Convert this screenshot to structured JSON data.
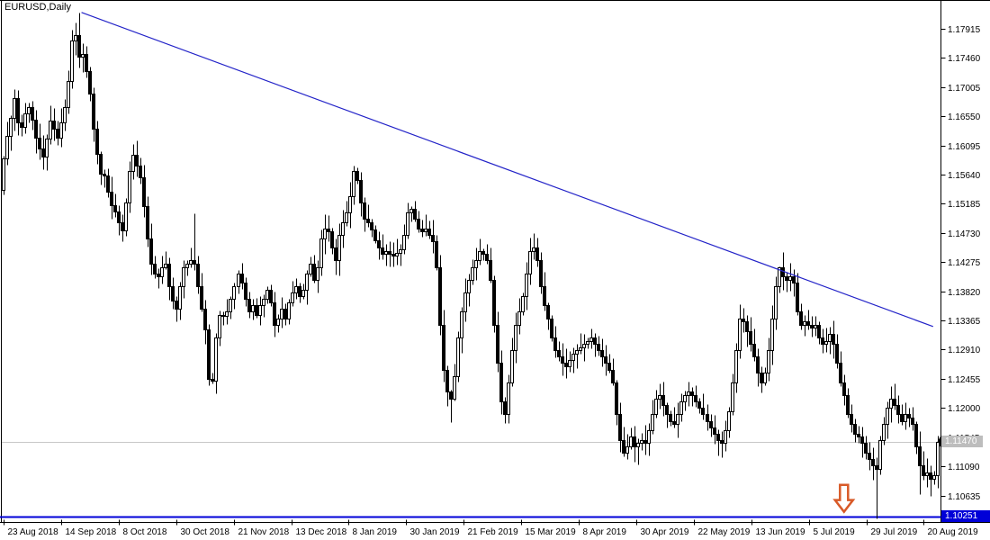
{
  "window": {
    "title_label": "EURUSD,Daily"
  },
  "chart_data": {
    "type": "candlestick",
    "symbol": "EURUSD",
    "timeframe": "Daily",
    "title": "EURUSD,Daily",
    "bars_total": 260,
    "ylim": [
      1.1019,
      1.1836
    ],
    "grid": "off",
    "legend": "none",
    "y_ticks": [
      "1.17915",
      "1.17460",
      "1.17005",
      "1.16550",
      "1.16095",
      "1.15640",
      "1.15185",
      "1.14730",
      "1.14275",
      "1.13820",
      "1.13365",
      "1.12910",
      "1.12455",
      "1.12000",
      "1.11545",
      "1.11090",
      "1.10635"
    ],
    "x_labels": [
      "23 Aug 2018",
      "14 Sep 2018",
      "8 Oct 2018",
      "30 Oct 2018",
      "21 Nov 2018",
      "13 Dec 2018",
      "8 Jan 2019",
      "30 Jan 2019",
      "21 Feb 2019",
      "15 Mar 2019",
      "8 Apr 2019",
      "30 Apr 2019",
      "22 May 2019",
      "13 Jun 2019",
      "5 Jul 2019",
      "29 Jul 2019",
      "20 Aug 2019"
    ],
    "first_open": 1.154,
    "closes": [
      1.159,
      1.1625,
      1.1652,
      1.1684,
      1.1645,
      1.1638,
      1.166,
      1.1669,
      1.165,
      1.1621,
      1.1605,
      1.1592,
      1.162,
      1.1648,
      1.1635,
      1.1621,
      1.1645,
      1.1669,
      1.171,
      1.1773,
      1.1782,
      1.1748,
      1.1752,
      1.1726,
      1.169,
      1.1635,
      1.1596,
      1.1565,
      1.1562,
      1.1538,
      1.1516,
      1.1507,
      1.149,
      1.1477,
      1.152,
      1.157,
      1.1595,
      1.1578,
      1.156,
      1.1515,
      1.1465,
      1.1425,
      1.141,
      1.1405,
      1.142,
      1.1425,
      1.139,
      1.1368,
      1.1355,
      1.139,
      1.142,
      1.1425,
      1.143,
      1.1425,
      1.139,
      1.1355,
      1.1322,
      1.1245,
      1.1242,
      1.131,
      1.1345,
      1.1343,
      1.135,
      1.137,
      1.139,
      1.141,
      1.1395,
      1.137,
      1.135,
      1.136,
      1.1345,
      1.136,
      1.137,
      1.1385,
      1.1365,
      1.133,
      1.134,
      1.1355,
      1.134,
      1.1365,
      1.138,
      1.139,
      1.1375,
      1.1385,
      1.141,
      1.1425,
      1.14,
      1.142,
      1.1465,
      1.148,
      1.1475,
      1.145,
      1.143,
      1.147,
      1.149,
      1.1505,
      1.153,
      1.157,
      1.1555,
      1.152,
      1.1495,
      1.149,
      1.1478,
      1.1462,
      1.145,
      1.144,
      1.1445,
      1.144,
      1.1438,
      1.1442,
      1.1448,
      1.147,
      1.1505,
      1.151,
      1.1495,
      1.148,
      1.1475,
      1.148,
      1.147,
      1.146,
      1.142,
      1.133,
      1.126,
      1.1225,
      1.1215,
      1.125,
      1.131,
      1.135,
      1.138,
      1.14,
      1.142,
      1.143,
      1.1445,
      1.144,
      1.143,
      1.14,
      1.133,
      1.127,
      1.121,
      1.119,
      1.124,
      1.129,
      1.133,
      1.135,
      1.1375,
      1.141,
      1.1445,
      1.145,
      1.143,
      1.139,
      1.136,
      1.134,
      1.131,
      1.129,
      1.128,
      1.127,
      1.1265,
      1.1275,
      1.1285,
      1.129,
      1.1295,
      1.13,
      1.1305,
      1.131,
      1.13,
      1.129,
      1.128,
      1.127,
      1.126,
      1.124,
      1.119,
      1.115,
      1.113,
      1.114,
      1.1155,
      1.114,
      1.1145,
      1.115,
      1.1145,
      1.1165,
      1.119,
      1.1215,
      1.122,
      1.1205,
      1.119,
      1.118,
      1.1175,
      1.119,
      1.121,
      1.122,
      1.1225,
      1.122,
      1.121,
      1.12,
      1.119,
      1.118,
      1.117,
      1.116,
      1.115,
      1.1145,
      1.1165,
      1.1195,
      1.124,
      1.129,
      1.134,
      1.1335,
      1.132,
      1.13,
      1.128,
      1.1255,
      1.124,
      1.1255,
      1.129,
      1.134,
      1.139,
      1.142,
      1.1405,
      1.14,
      1.1405,
      1.1395,
      1.135,
      1.133,
      1.1335,
      1.133,
      1.1325,
      1.133,
      1.131,
      1.13,
      1.1305,
      1.1315,
      1.13,
      1.127,
      1.124,
      1.122,
      1.119,
      1.1175,
      1.116,
      1.1155,
      1.1145,
      1.113,
      1.112,
      1.111,
      1.1105,
      1.115,
      1.1175,
      1.12,
      1.1215,
      1.1205,
      1.119,
      1.118,
      1.119,
      1.1185,
      1.1175,
      1.114,
      1.111,
      1.1095,
      1.11,
      1.109,
      1.1095,
      1.1147
    ],
    "wick_overrides": {
      "3": {
        "high": 1.1697
      },
      "19": {
        "high": 1.179
      },
      "21": {
        "high": 1.1817
      },
      "36": {
        "high": 1.1612
      },
      "53": {
        "high": 1.1503
      },
      "57": {
        "low": 1.1236
      },
      "58": {
        "low": 1.1238
      },
      "97": {
        "high": 1.1578
      },
      "112": {
        "high": 1.1521
      },
      "124": {
        "low": 1.1178
      },
      "139": {
        "low": 1.1176
      },
      "172": {
        "low": 1.1125
      },
      "176": {
        "low": 1.1112
      },
      "215": {
        "high": 1.1421
      },
      "242": {
        "low": 1.1028
      },
      "254": {
        "low": 1.1066
      },
      "257": {
        "low": 1.1063
      }
    },
    "trendline": {
      "from_bar": 21.6,
      "from_price": 1.1817,
      "to_bar": 257.7,
      "to_price": 1.1327,
      "color": "#2323c8"
    },
    "current_price_line": {
      "price": 1.1147,
      "label": "1.11470",
      "line_color": "#c8c8c8",
      "box_color": "#bdbdbd",
      "text_color": "#ffffff"
    },
    "support_line": {
      "price": 1.10251,
      "label": "1.10251",
      "line_color": "#0000d8",
      "box_color": "#0000d8",
      "text_color": "#ffffff"
    },
    "annotations": [
      {
        "type": "down-arrow",
        "bar": 233,
        "from_price": 1.108,
        "to_price": 1.1038,
        "color": "#d85a28"
      }
    ],
    "last_price_marker": {
      "bar": 259,
      "price": 1.1147,
      "color": "#000000"
    },
    "candle_colors": {
      "up_fill": "#ffffff",
      "down_fill": "#000000",
      "outline": "#000000"
    }
  }
}
